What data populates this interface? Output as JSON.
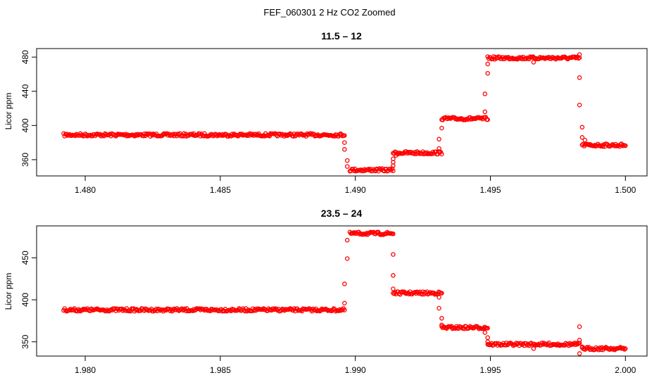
{
  "figure_title": "FEF_060301  2 Hz CO2 Zoomed",
  "colors": {
    "points": "#ff0000",
    "axes": "#000000",
    "background": "#ffffff"
  },
  "chart_data": [
    {
      "type": "scatter",
      "title": "11.5 – 12",
      "xlabel": "",
      "ylabel": "Licor ppm",
      "xlim": [
        1.4782,
        1.5008
      ],
      "ylim": [
        341,
        490
      ],
      "xticks": [
        1.48,
        1.485,
        1.49,
        1.495,
        1.5
      ],
      "xtick_labels": [
        "1.480",
        "1.485",
        "1.490",
        "1.495",
        "1.500"
      ],
      "yticks": [
        360,
        400,
        440,
        480
      ],
      "ytick_labels": [
        "360",
        "400",
        "440",
        "480"
      ],
      "grid": false,
      "series": [
        {
          "levels": [
            {
              "x_start": 1.4792,
              "x_end": 1.4896,
              "y": 389
            },
            {
              "x_start": 1.4898,
              "x_end": 1.4914,
              "y": 348
            },
            {
              "x_start": 1.4914,
              "x_end": 1.4932,
              "y": 368
            },
            {
              "x_start": 1.4932,
              "x_end": 1.4949,
              "y": 408
            },
            {
              "x_start": 1.4949,
              "x_end": 1.4983,
              "y": 479
            },
            {
              "x_start": 1.4984,
              "x_end": 1.5,
              "y": 377
            }
          ],
          "transition_points": [
            {
              "x": 1.4896,
              "y": 380
            },
            {
              "x": 1.4896,
              "y": 372
            },
            {
              "x": 1.4897,
              "y": 359
            },
            {
              "x": 1.4897,
              "y": 352
            },
            {
              "x": 1.4914,
              "y": 353
            },
            {
              "x": 1.4914,
              "y": 357
            },
            {
              "x": 1.4914,
              "y": 361
            },
            {
              "x": 1.4915,
              "y": 365
            },
            {
              "x": 1.4931,
              "y": 373
            },
            {
              "x": 1.4931,
              "y": 384
            },
            {
              "x": 1.4932,
              "y": 397
            },
            {
              "x": 1.4948,
              "y": 416
            },
            {
              "x": 1.4948,
              "y": 437
            },
            {
              "x": 1.4949,
              "y": 461
            },
            {
              "x": 1.4949,
              "y": 472
            },
            {
              "x": 1.4966,
              "y": 474
            },
            {
              "x": 1.4983,
              "y": 483
            },
            {
              "x": 1.4983,
              "y": 456
            },
            {
              "x": 1.4983,
              "y": 424
            },
            {
              "x": 1.4984,
              "y": 398
            },
            {
              "x": 1.4984,
              "y": 386
            },
            {
              "x": 1.4985,
              "y": 383
            }
          ]
        }
      ]
    },
    {
      "type": "scatter",
      "title": "23.5 – 24",
      "xlabel": "",
      "ylabel": "Licor ppm",
      "xlim": [
        1.9782,
        2.0008
      ],
      "ylim": [
        333,
        488
      ],
      "xticks": [
        1.98,
        1.985,
        1.99,
        1.995,
        2.0
      ],
      "xtick_labels": [
        "1.980",
        "1.985",
        "1.990",
        "1.995",
        "2.000"
      ],
      "yticks": [
        350,
        400,
        450
      ],
      "ytick_labels": [
        "350",
        "400",
        "450"
      ],
      "grid": false,
      "series": [
        {
          "levels": [
            {
              "x_start": 1.9792,
              "x_end": 1.9896,
              "y": 388
            },
            {
              "x_start": 1.9898,
              "x_end": 1.9914,
              "y": 479
            },
            {
              "x_start": 1.9914,
              "x_end": 1.9932,
              "y": 408
            },
            {
              "x_start": 1.9932,
              "x_end": 1.9949,
              "y": 367
            },
            {
              "x_start": 1.9949,
              "x_end": 1.9983,
              "y": 347
            },
            {
              "x_start": 1.9984,
              "x_end": 2.0,
              "y": 342
            }
          ],
          "transition_points": [
            {
              "x": 1.9896,
              "y": 396
            },
            {
              "x": 1.9896,
              "y": 419
            },
            {
              "x": 1.9897,
              "y": 449
            },
            {
              "x": 1.9897,
              "y": 471
            },
            {
              "x": 1.9914,
              "y": 454
            },
            {
              "x": 1.9914,
              "y": 429
            },
            {
              "x": 1.9914,
              "y": 413
            },
            {
              "x": 1.9931,
              "y": 403
            },
            {
              "x": 1.9931,
              "y": 390
            },
            {
              "x": 1.9932,
              "y": 378
            },
            {
              "x": 1.9932,
              "y": 370
            },
            {
              "x": 1.9948,
              "y": 361
            },
            {
              "x": 1.9949,
              "y": 355
            },
            {
              "x": 1.9949,
              "y": 350
            },
            {
              "x": 1.9966,
              "y": 342
            },
            {
              "x": 1.9983,
              "y": 368
            },
            {
              "x": 1.9983,
              "y": 352
            },
            {
              "x": 1.9983,
              "y": 336
            },
            {
              "x": 1.9984,
              "y": 344
            }
          ]
        }
      ]
    }
  ]
}
